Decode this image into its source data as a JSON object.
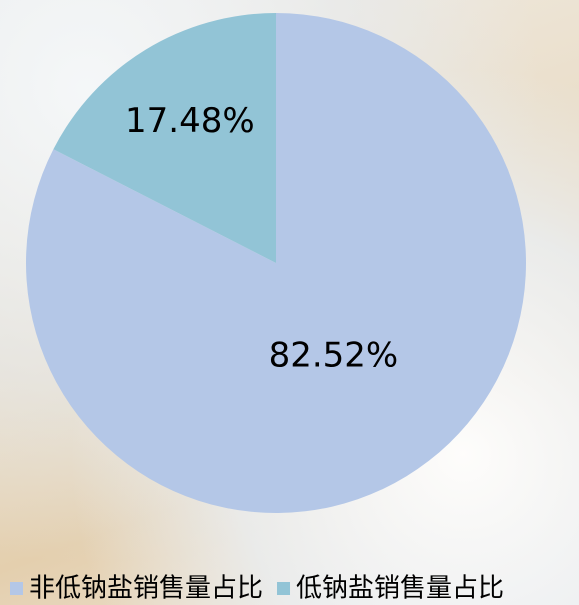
{
  "chart_data": {
    "type": "pie",
    "categories": [
      "非低钠盐销售量占比",
      "低钠盐销售量占比"
    ],
    "values": [
      82.52,
      17.48
    ],
    "value_labels": [
      "82.52%",
      "17.48%"
    ],
    "colors": [
      "#b4c7e7",
      "#92c4d6"
    ],
    "legend": "bottom"
  }
}
